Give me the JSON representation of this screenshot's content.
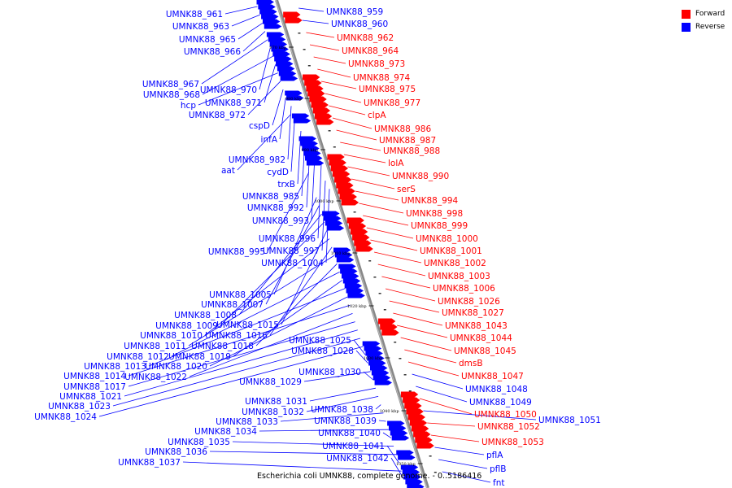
{
  "legend": {
    "forward_label": "Forward",
    "reverse_label": "Reverse",
    "forward_color": "#ff0000",
    "reverse_color": "#0000ff"
  },
  "caption": "Escherichia coli UMNK88, complete genome. - 0..5186416",
  "ticks": [
    "970 kbp",
    "980 kbp",
    "990 kbp",
    "1000 kbp",
    "1010 kbp",
    "1020 kbp",
    "1030 kbp",
    "1040 kbp",
    "1050 kbp"
  ],
  "left_labels": [
    "UMNK88_961",
    "UMNK88_963",
    "UMNK88_965",
    "UMNK88_966",
    "UMNK88_967",
    "UMNK88_970",
    "UMNK88_968",
    "UMNK88_971",
    "hcp",
    "UMNK88_972",
    "cspD",
    "infA",
    "UMNK88_982",
    "aat",
    "cydD",
    "trxB",
    "UMNK88_985",
    "UMNK88_992",
    "UMNK88_993",
    "UMNK88_996",
    "UMNK88_995",
    "UMNK88_997",
    "UMNK88_1004",
    "UMNK88_1005",
    "UMNK88_1007",
    "UMNK88_1008",
    "UMNK88_1009",
    "UMNK88_1015",
    "UMNK88_1010",
    "UMNK88_1016",
    "UMNK88_1011",
    "UMNK88_1018",
    "UMNK88_1012",
    "UMNK88_1019",
    "UMNK88_1013",
    "UMNK88_1020",
    "UMNK88_1014",
    "UMNK88_1022",
    "UMNK88_1017",
    "UMNK88_1021",
    "UMNK88_1023",
    "UMNK88_1024",
    "UMNK88_1025",
    "UMNK88_1028",
    "UMNK88_1029",
    "UMNK88_1030",
    "UMNK88_1031",
    "UMNK88_1032",
    "UMNK88_1038",
    "UMNK88_1033",
    "UMNK88_1039",
    "UMNK88_1034",
    "UMNK88_1040",
    "UMNK88_1035",
    "UMNK88_1036",
    "UMNK88_1041",
    "UMNK88_1037",
    "UMNK88_1042"
  ],
  "right_labels": [
    {
      "name": "UMNK88_959",
      "strand": "reverse"
    },
    {
      "name": "UMNK88_960",
      "strand": "reverse"
    },
    {
      "name": "UMNK88_962",
      "strand": "forward"
    },
    {
      "name": "UMNK88_964",
      "strand": "forward"
    },
    {
      "name": "UMNK88_973",
      "strand": "forward"
    },
    {
      "name": "UMNK88_974",
      "strand": "forward"
    },
    {
      "name": "UMNK88_975",
      "strand": "forward"
    },
    {
      "name": "UMNK88_977",
      "strand": "forward"
    },
    {
      "name": "clpA",
      "strand": "forward"
    },
    {
      "name": "UMNK88_986",
      "strand": "forward"
    },
    {
      "name": "UMNK88_987",
      "strand": "forward"
    },
    {
      "name": "UMNK88_988",
      "strand": "forward"
    },
    {
      "name": "lolA",
      "strand": "forward"
    },
    {
      "name": "UMNK88_990",
      "strand": "forward"
    },
    {
      "name": "serS",
      "strand": "forward"
    },
    {
      "name": "UMNK88_994",
      "strand": "forward"
    },
    {
      "name": "UMNK88_998",
      "strand": "forward"
    },
    {
      "name": "UMNK88_999",
      "strand": "forward"
    },
    {
      "name": "UMNK88_1000",
      "strand": "forward"
    },
    {
      "name": "UMNK88_1001",
      "strand": "forward"
    },
    {
      "name": "UMNK88_1002",
      "strand": "forward"
    },
    {
      "name": "UMNK88_1003",
      "strand": "forward"
    },
    {
      "name": "UMNK88_1006",
      "strand": "forward"
    },
    {
      "name": "UMNK88_1026",
      "strand": "forward"
    },
    {
      "name": "UMNK88_1027",
      "strand": "forward"
    },
    {
      "name": "UMNK88_1043",
      "strand": "forward"
    },
    {
      "name": "UMNK88_1044",
      "strand": "forward"
    },
    {
      "name": "UMNK88_1045",
      "strand": "forward"
    },
    {
      "name": "dmsB",
      "strand": "forward"
    },
    {
      "name": "UMNK88_1047",
      "strand": "forward"
    },
    {
      "name": "UMNK88_1048",
      "strand": "reverse"
    },
    {
      "name": "UMNK88_1049",
      "strand": "reverse"
    },
    {
      "name": "UMNK88_1050",
      "strand": "forward"
    },
    {
      "name": "UMNK88_1051",
      "strand": "reverse"
    },
    {
      "name": "UMNK88_1052",
      "strand": "forward"
    },
    {
      "name": "UMNK88_1053",
      "strand": "forward"
    },
    {
      "name": "pflA",
      "strand": "reverse"
    },
    {
      "name": "pflB",
      "strand": "reverse"
    },
    {
      "name": "fnt",
      "strand": "reverse"
    }
  ]
}
